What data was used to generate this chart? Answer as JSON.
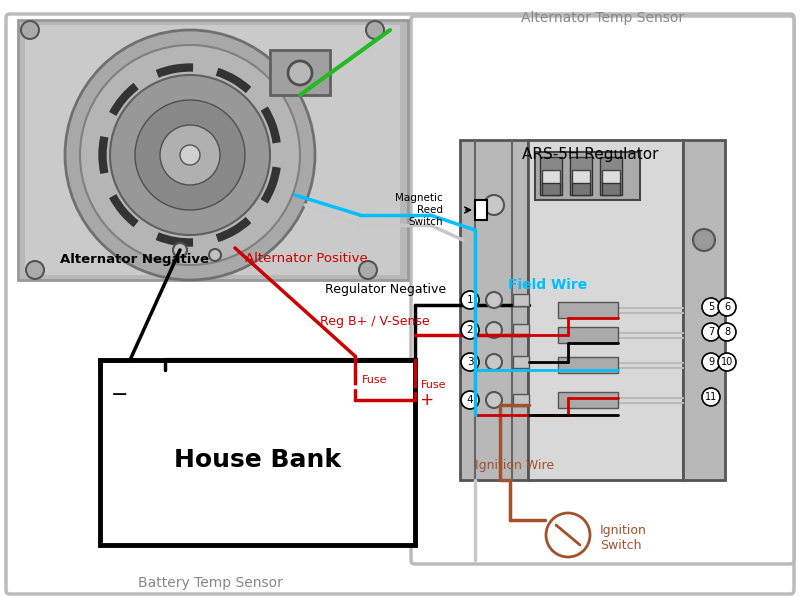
{
  "bg": "#ffffff",
  "alt_temp_sensor": "Alternator Temp Sensor",
  "bat_temp_sensor": "Battery Temp Sensor",
  "ars_label": "ARS-5H Regulator",
  "magnetic_reed": "Magnetic\nReed\nSwitch",
  "field_wire": "Field Wire",
  "alt_neg": "Alternator Negative",
  "alt_pos": "Alternator Positive",
  "reg_neg": "Regulator Negative",
  "reg_bplus": "Reg B+ / V-Sense",
  "house_bank": "House Bank",
  "ign_wire": "Ignition Wire",
  "ign_switch": "Ignition\nSwitch",
  "fuse": "Fuse",
  "black": "#000000",
  "red": "#cc0000",
  "blue": "#00bfff",
  "brown": "#a0522d",
  "gray": "#888888",
  "lgray": "#bbbbbb",
  "mgray": "#c8c8c8",
  "dgray": "#777777",
  "green": "#22bb22",
  "panel_gray": "#b8b8b8",
  "body_gray": "#d8d8d8",
  "alt_bg": "#c0c0c0"
}
